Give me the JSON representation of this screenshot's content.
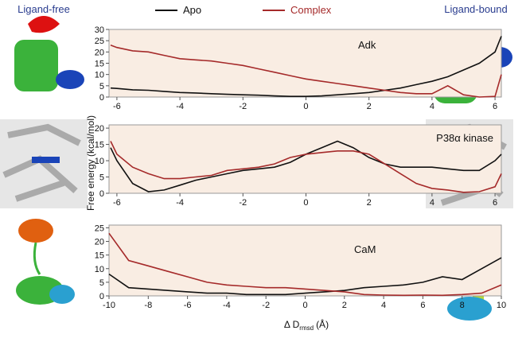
{
  "chart_data": [
    {
      "type": "line",
      "title": "Adk",
      "x": [
        -6.2,
        -6,
        -5.5,
        -5,
        -4.5,
        -4,
        -3.5,
        -3,
        -2.5,
        -2,
        -1.5,
        -1,
        -0.5,
        0,
        0.5,
        1,
        1.5,
        2,
        2.5,
        3,
        3.5,
        4,
        4.5,
        5,
        5.5,
        6,
        6.2
      ],
      "series": [
        {
          "name": "Apo",
          "color": "#111111",
          "values": [
            4,
            3.8,
            3.2,
            3,
            2.5,
            2,
            1.8,
            1.5,
            1.2,
            1,
            0.8,
            0.5,
            0.3,
            0.3,
            0.5,
            1,
            1.5,
            2,
            3,
            4,
            5.5,
            7,
            9,
            12,
            15,
            20,
            27
          ]
        },
        {
          "name": "Complex",
          "color": "#a52a2a",
          "values": [
            23,
            22,
            20.5,
            20,
            18.5,
            17,
            16.5,
            16,
            15,
            14,
            12.5,
            11,
            9.5,
            8,
            7,
            6,
            5,
            4,
            3,
            2,
            1.5,
            1.5,
            5,
            1,
            0,
            0.3,
            10
          ]
        }
      ],
      "xlim": [
        -6.25,
        6.2
      ],
      "xticks": [
        -6,
        -4,
        -2,
        0,
        2,
        4,
        6
      ],
      "ylim": [
        0,
        30
      ],
      "yticks": [
        0,
        5,
        10,
        15,
        20,
        25,
        30
      ]
    },
    {
      "type": "line",
      "title": "P38α kinase",
      "x": [
        -6.2,
        -6,
        -5.5,
        -5,
        -4.5,
        -4,
        -3.5,
        -3,
        -2.5,
        -2,
        -1.5,
        -1,
        -0.5,
        0,
        0.5,
        1,
        1.5,
        2,
        2.5,
        3,
        3.5,
        4,
        4.5,
        5,
        5.5,
        6,
        6.2
      ],
      "series": [
        {
          "name": "Apo",
          "color": "#111111",
          "values": [
            14,
            10,
            3,
            0.5,
            1,
            2.5,
            4,
            5,
            6,
            7,
            7.5,
            8,
            9.5,
            12,
            14,
            16,
            14,
            11,
            9,
            8,
            8,
            8,
            7.5,
            7,
            7,
            10,
            12
          ]
        },
        {
          "name": "Complex",
          "color": "#a52a2a",
          "values": [
            16,
            12,
            8,
            6,
            4.5,
            4.5,
            5,
            5.5,
            7,
            7.5,
            8,
            9,
            11,
            12,
            12.5,
            13,
            13,
            12,
            9,
            6,
            3,
            1.5,
            1,
            0.3,
            0.5,
            2,
            6
          ]
        }
      ],
      "xlim": [
        -6.25,
        6.2
      ],
      "xticks": [
        -6,
        -4,
        -2,
        0,
        2,
        4,
        6
      ],
      "ylim": [
        0,
        21
      ],
      "yticks": [
        0,
        5,
        10,
        15,
        20
      ]
    },
    {
      "type": "line",
      "title": "CaM",
      "x": [
        -10,
        -9,
        -8,
        -7,
        -6,
        -5,
        -4,
        -3,
        -2,
        -1,
        0,
        1,
        2,
        3,
        4,
        5,
        6,
        7,
        8,
        9,
        10
      ],
      "series": [
        {
          "name": "Apo",
          "color": "#111111",
          "values": [
            8,
            3,
            2.5,
            2,
            1.5,
            1,
            1,
            0.5,
            0.5,
            0.5,
            1,
            1.5,
            2,
            3,
            3.5,
            4,
            5,
            7,
            6,
            10,
            14
          ]
        },
        {
          "name": "Complex",
          "color": "#a52a2a",
          "values": [
            23,
            13,
            11,
            9,
            7,
            5,
            4,
            3.5,
            3,
            3,
            2.5,
            2,
            1.5,
            0.5,
            0.3,
            0.2,
            0.3,
            0.2,
            0.5,
            1,
            4
          ]
        }
      ],
      "xlim": [
        -10,
        10
      ],
      "xticks": [
        -10,
        -8,
        -6,
        -4,
        -2,
        0,
        2,
        4,
        6,
        8,
        10
      ],
      "ylim": [
        0,
        26
      ],
      "yticks": [
        0,
        5,
        10,
        15,
        20,
        25
      ]
    }
  ],
  "y_label": "Free energy (kcal/mol)",
  "x_label": {
    "main": "Δ D",
    "sub": "rmsd",
    "unit": "(Å)"
  },
  "side_labels": {
    "left": "Ligand-free",
    "right": "Ligand-bound"
  }
}
